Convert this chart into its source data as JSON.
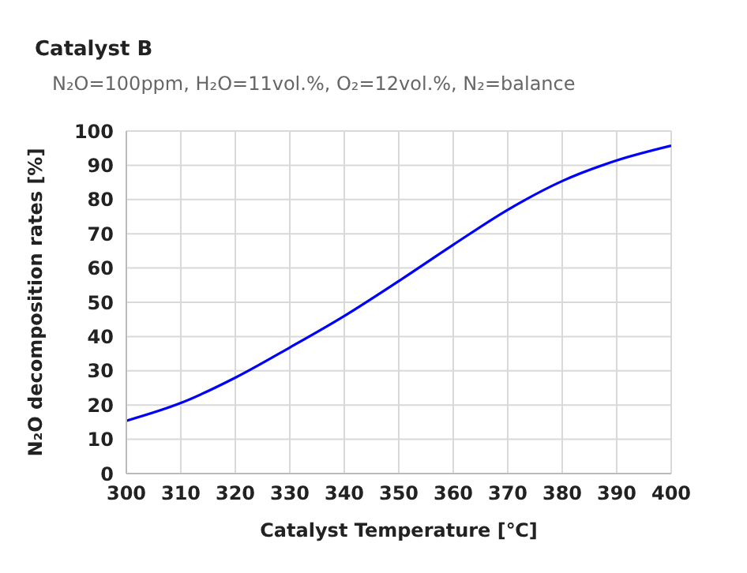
{
  "chart_data": {
    "type": "line",
    "title": "Catalyst B",
    "subtitle": "N₂O=100ppm, H₂O=11vol.%, O₂=12vol.%, N₂=balance",
    "xlabel": "Catalyst Temperature [℃]",
    "ylabel": "N₂O decomposition rates [%]",
    "x": [
      300,
      310,
      320,
      330,
      340,
      350,
      360,
      370,
      380,
      390,
      400
    ],
    "series": [
      {
        "color": "#0000ff",
        "values": [
          15.4,
          20.6,
          28,
          36.8,
          46,
          56.2,
          66.8,
          77,
          85.4,
          91.4,
          95.7
        ]
      }
    ],
    "xlim": [
      300,
      400
    ],
    "xticks": [
      300,
      310,
      320,
      330,
      340,
      350,
      360,
      370,
      380,
      390,
      400
    ],
    "ylim": [
      0,
      100
    ],
    "yticks": [
      0,
      10,
      20,
      30,
      40,
      50,
      60,
      70,
      80,
      90,
      100
    ],
    "grid": true,
    "legend": false,
    "marker": "none",
    "line_style": "solid"
  }
}
